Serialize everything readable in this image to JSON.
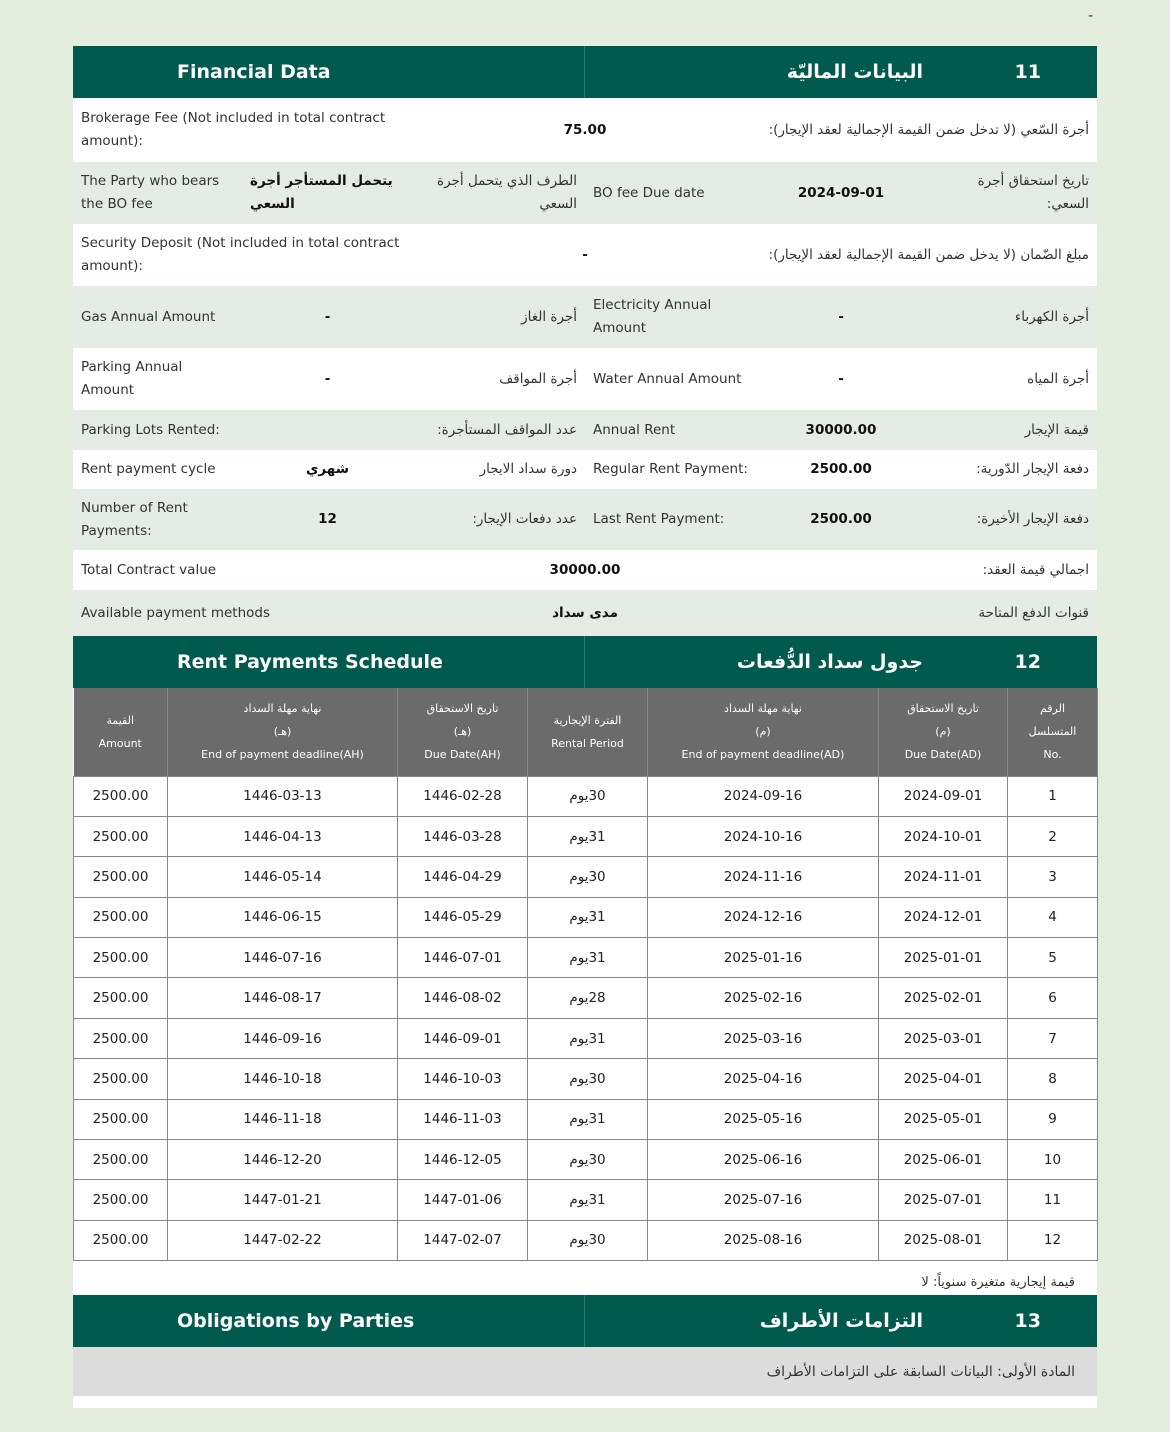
{
  "financial": {
    "title_en": "Financial Data",
    "title_ar": "البيانات الماليّة",
    "num": "11",
    "brokerage": {
      "en": "Brokerage Fee (Not included in total contract amount):",
      "value": "75.00",
      "ar": "أجرة السّعي (لا تدخل ضمن القيمة الإجمالية لعقد الإيجار):"
    },
    "party": {
      "en": "The Party who bears the BO fee",
      "value": "يتحمل المستأجر أجرة السعي",
      "ar": "الطرف الذي يتحمل أجرة السعي"
    },
    "bo_due": {
      "en": "BO fee Due date",
      "value": "2024-09-01",
      "ar": "تاريخ استحقاق أجرة السعي:"
    },
    "security": {
      "en": "Security Deposit (Not included in total contract amount):",
      "value": "-",
      "ar": "مبلغ الضّمان (لا يدخل ضمن القيمة الإجمالية لعقد الإيجار):"
    },
    "gas": {
      "en": "Gas Annual Amount",
      "value": "-",
      "ar": "أجرة الغاز"
    },
    "electricity": {
      "en": "Electricity Annual Amount",
      "value": "-",
      "ar": "أجرة الكهرباء"
    },
    "parking": {
      "en": "Parking Annual Amount",
      "value": "-",
      "ar": "أجرة المواقف"
    },
    "water": {
      "en": "Water Annual Amount",
      "value": "-",
      "ar": "أجرة المياه"
    },
    "parking_lots": {
      "en": "Parking Lots Rented:",
      "value": "",
      "ar": "عدد المواقف المستأجرة:"
    },
    "annual_rent": {
      "en": "Annual Rent",
      "value": "30000.00",
      "ar": "قيمة الإيجار"
    },
    "cycle": {
      "en": "Rent payment cycle",
      "value": "شهري",
      "ar": "دورة سداد الايجار"
    },
    "regular": {
      "en": "Regular Rent Payment:",
      "value": "2500.00",
      "ar": "دفعة الإيجار الدّورية:"
    },
    "count": {
      "en": "Number of Rent Payments:",
      "value": "12",
      "ar": "عدد دفعات الإيجار:"
    },
    "last": {
      "en": "Last Rent Payment:",
      "value": "2500.00",
      "ar": "دفعة الإيجار الأخيرة:"
    },
    "total": {
      "en": "Total Contract value",
      "value": "30000.00",
      "ar": "اجمالي قيمة العقد:"
    },
    "methods": {
      "en": "Available payment methods",
      "value": "مدى سداد",
      "ar": "قنوات الدفع المتاحة"
    }
  },
  "schedule": {
    "title_en": "Rent Payments Schedule",
    "title_ar": "جدول سداد الدُّفعات",
    "num": "12",
    "headers": [
      [
        "القيمة",
        "Amount"
      ],
      [
        "نهاية مهلة السداد",
        "(هـ)",
        "End of payment deadline(AH)"
      ],
      [
        "تاريخ الاستحقاق",
        "(هـ)",
        "Due Date(AH)"
      ],
      [
        "الفترة الإيجارية",
        "Rental Period"
      ],
      [
        "نهاية مهلة السداد",
        "(م)",
        "End of payment deadline(AD)"
      ],
      [
        "تاريخ الاستحقاق",
        "(م)",
        "Due Date(AD)"
      ],
      [
        "الرقم",
        "المتسلسل",
        "No."
      ]
    ],
    "rows": [
      [
        "2500.00",
        "1446-03-13",
        "1446-02-28",
        "30يوم",
        "2024-09-16",
        "2024-09-01",
        "1"
      ],
      [
        "2500.00",
        "1446-04-13",
        "1446-03-28",
        "31يوم",
        "2024-10-16",
        "2024-10-01",
        "2"
      ],
      [
        "2500.00",
        "1446-05-14",
        "1446-04-29",
        "30يوم",
        "2024-11-16",
        "2024-11-01",
        "3"
      ],
      [
        "2500.00",
        "1446-06-15",
        "1446-05-29",
        "31يوم",
        "2024-12-16",
        "2024-12-01",
        "4"
      ],
      [
        "2500.00",
        "1446-07-16",
        "1446-07-01",
        "31يوم",
        "2025-01-16",
        "2025-01-01",
        "5"
      ],
      [
        "2500.00",
        "1446-08-17",
        "1446-08-02",
        "28يوم",
        "2025-02-16",
        "2025-02-01",
        "6"
      ],
      [
        "2500.00",
        "1446-09-16",
        "1446-09-01",
        "31يوم",
        "2025-03-16",
        "2025-03-01",
        "7"
      ],
      [
        "2500.00",
        "1446-10-18",
        "1446-10-03",
        "30يوم",
        "2025-04-16",
        "2025-04-01",
        "8"
      ],
      [
        "2500.00",
        "1446-11-18",
        "1446-11-03",
        "31يوم",
        "2025-05-16",
        "2025-05-01",
        "9"
      ],
      [
        "2500.00",
        "1446-12-20",
        "1446-12-05",
        "30يوم",
        "2025-06-16",
        "2025-06-01",
        "10"
      ],
      [
        "2500.00",
        "1447-01-21",
        "1447-01-06",
        "31يوم",
        "2025-07-16",
        "2025-07-01",
        "11"
      ],
      [
        "2500.00",
        "1447-02-22",
        "1447-02-07",
        "30يوم",
        "2025-08-16",
        "2025-08-01",
        "12"
      ]
    ],
    "note": "قيمة إيجارية متغيرة سنوياً: لا"
  },
  "obligations": {
    "title_en": "Obligations by Parties",
    "title_ar": "التزامات الأطراف",
    "num": "13",
    "article": "المادة الأولى: البيانات السابقة على التزامات الأطراف"
  }
}
